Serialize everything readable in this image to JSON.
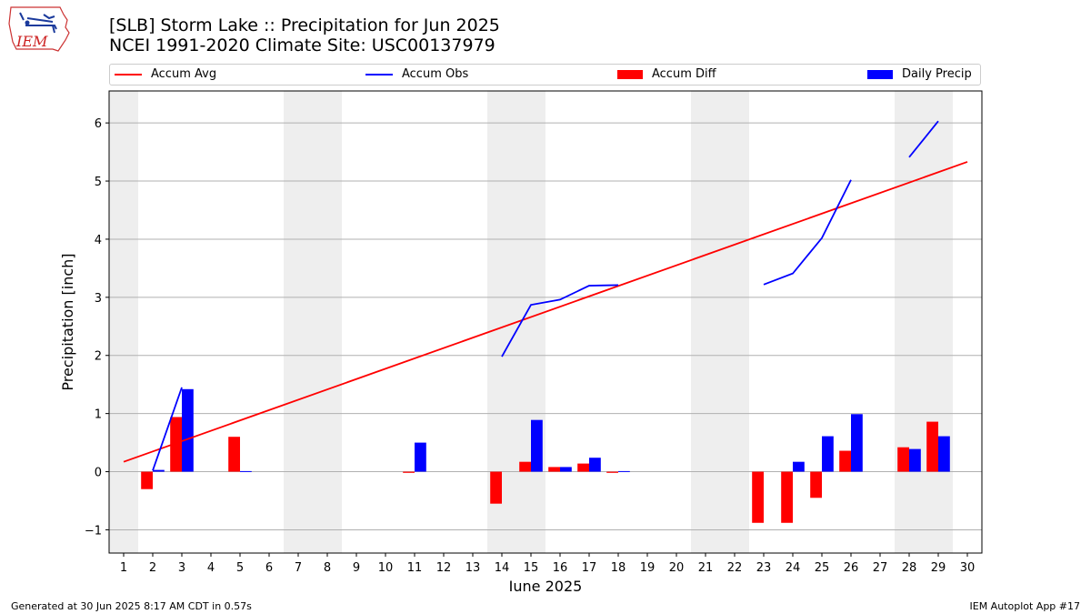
{
  "header": {
    "logo_text": "IEM",
    "title_line1": "[SLB] Storm Lake :: Precipitation for Jun 2025",
    "title_line2": "NCEI 1991-2020 Climate Site: USC00137979"
  },
  "legend": {
    "items": [
      {
        "label": "Accum Avg",
        "color": "#ff0000",
        "kind": "line"
      },
      {
        "label": "Accum Obs",
        "color": "#0000ff",
        "kind": "line"
      },
      {
        "label": "Accum Diff",
        "color": "#ff0000",
        "kind": "box"
      },
      {
        "label": "Daily Precip",
        "color": "#0000ff",
        "kind": "box"
      }
    ]
  },
  "chart_data": {
    "type": "bar",
    "title": "[SLB] Storm Lake :: Precipitation for Jun 2025",
    "subtitle": "NCEI 1991-2020 Climate Site: USC00137979",
    "xlabel": "June 2025",
    "ylabel": "Precipitation [inch]",
    "xlim": [
      0.5,
      30.5
    ],
    "ylim": [
      -1.4,
      6.55
    ],
    "yticks": [
      -1,
      0,
      1,
      2,
      3,
      4,
      5,
      6
    ],
    "ytick_labels": [
      "−1",
      "0",
      "1",
      "2",
      "3",
      "4",
      "5",
      "6"
    ],
    "x": [
      1,
      2,
      3,
      4,
      5,
      6,
      7,
      8,
      9,
      10,
      11,
      12,
      13,
      14,
      15,
      16,
      17,
      18,
      19,
      20,
      21,
      22,
      23,
      24,
      25,
      26,
      27,
      28,
      29,
      30
    ],
    "weekend_ranges": [
      [
        0.5,
        1.5
      ],
      [
        6.5,
        8.5
      ],
      [
        13.5,
        15.5
      ],
      [
        20.5,
        22.5
      ],
      [
        27.5,
        29.5
      ]
    ],
    "grid": "horizontal",
    "series": [
      {
        "name": "Accum Avg",
        "kind": "line",
        "color": "#ff0000",
        "points": [
          [
            1,
            0.17
          ],
          [
            30,
            5.33
          ]
        ]
      },
      {
        "name": "Accum Obs",
        "kind": "line",
        "color": "#0000ff",
        "segments": [
          [
            [
              2,
              0.02
            ],
            [
              3,
              1.45
            ]
          ],
          [
            [
              14,
              1.98
            ],
            [
              15,
              2.87
            ],
            [
              16,
              2.96
            ],
            [
              17,
              3.2
            ],
            [
              18,
              3.21
            ]
          ],
          [
            [
              23,
              3.22
            ],
            [
              24,
              3.41
            ],
            [
              25,
              4.02
            ],
            [
              26,
              5.02
            ]
          ],
          [
            [
              28,
              5.41
            ],
            [
              29,
              6.03
            ]
          ]
        ]
      },
      {
        "name": "Accum Diff",
        "kind": "bar",
        "color": "#ff0000",
        "offset": -0.2,
        "values": [
          null,
          -0.3,
          0.94,
          null,
          0.6,
          null,
          null,
          null,
          null,
          null,
          -0.02,
          null,
          null,
          -0.55,
          0.17,
          0.08,
          0.14,
          -0.02,
          null,
          null,
          null,
          null,
          -0.88,
          -0.88,
          -0.45,
          0.36,
          null,
          0.42,
          0.86,
          null
        ]
      },
      {
        "name": "Daily Precip",
        "kind": "bar",
        "color": "#0000ff",
        "offset": 0.2,
        "values": [
          null,
          0.03,
          1.42,
          null,
          0.01,
          null,
          null,
          null,
          null,
          null,
          0.5,
          null,
          null,
          null,
          0.89,
          0.08,
          0.24,
          0.01,
          null,
          null,
          null,
          null,
          null,
          0.17,
          0.61,
          0.99,
          null,
          0.39,
          0.61,
          null
        ]
      }
    ]
  },
  "footer": {
    "generated": "Generated at 30 Jun 2025 8:17 AM CDT in 0.57s",
    "app": "IEM Autoplot App #17"
  }
}
